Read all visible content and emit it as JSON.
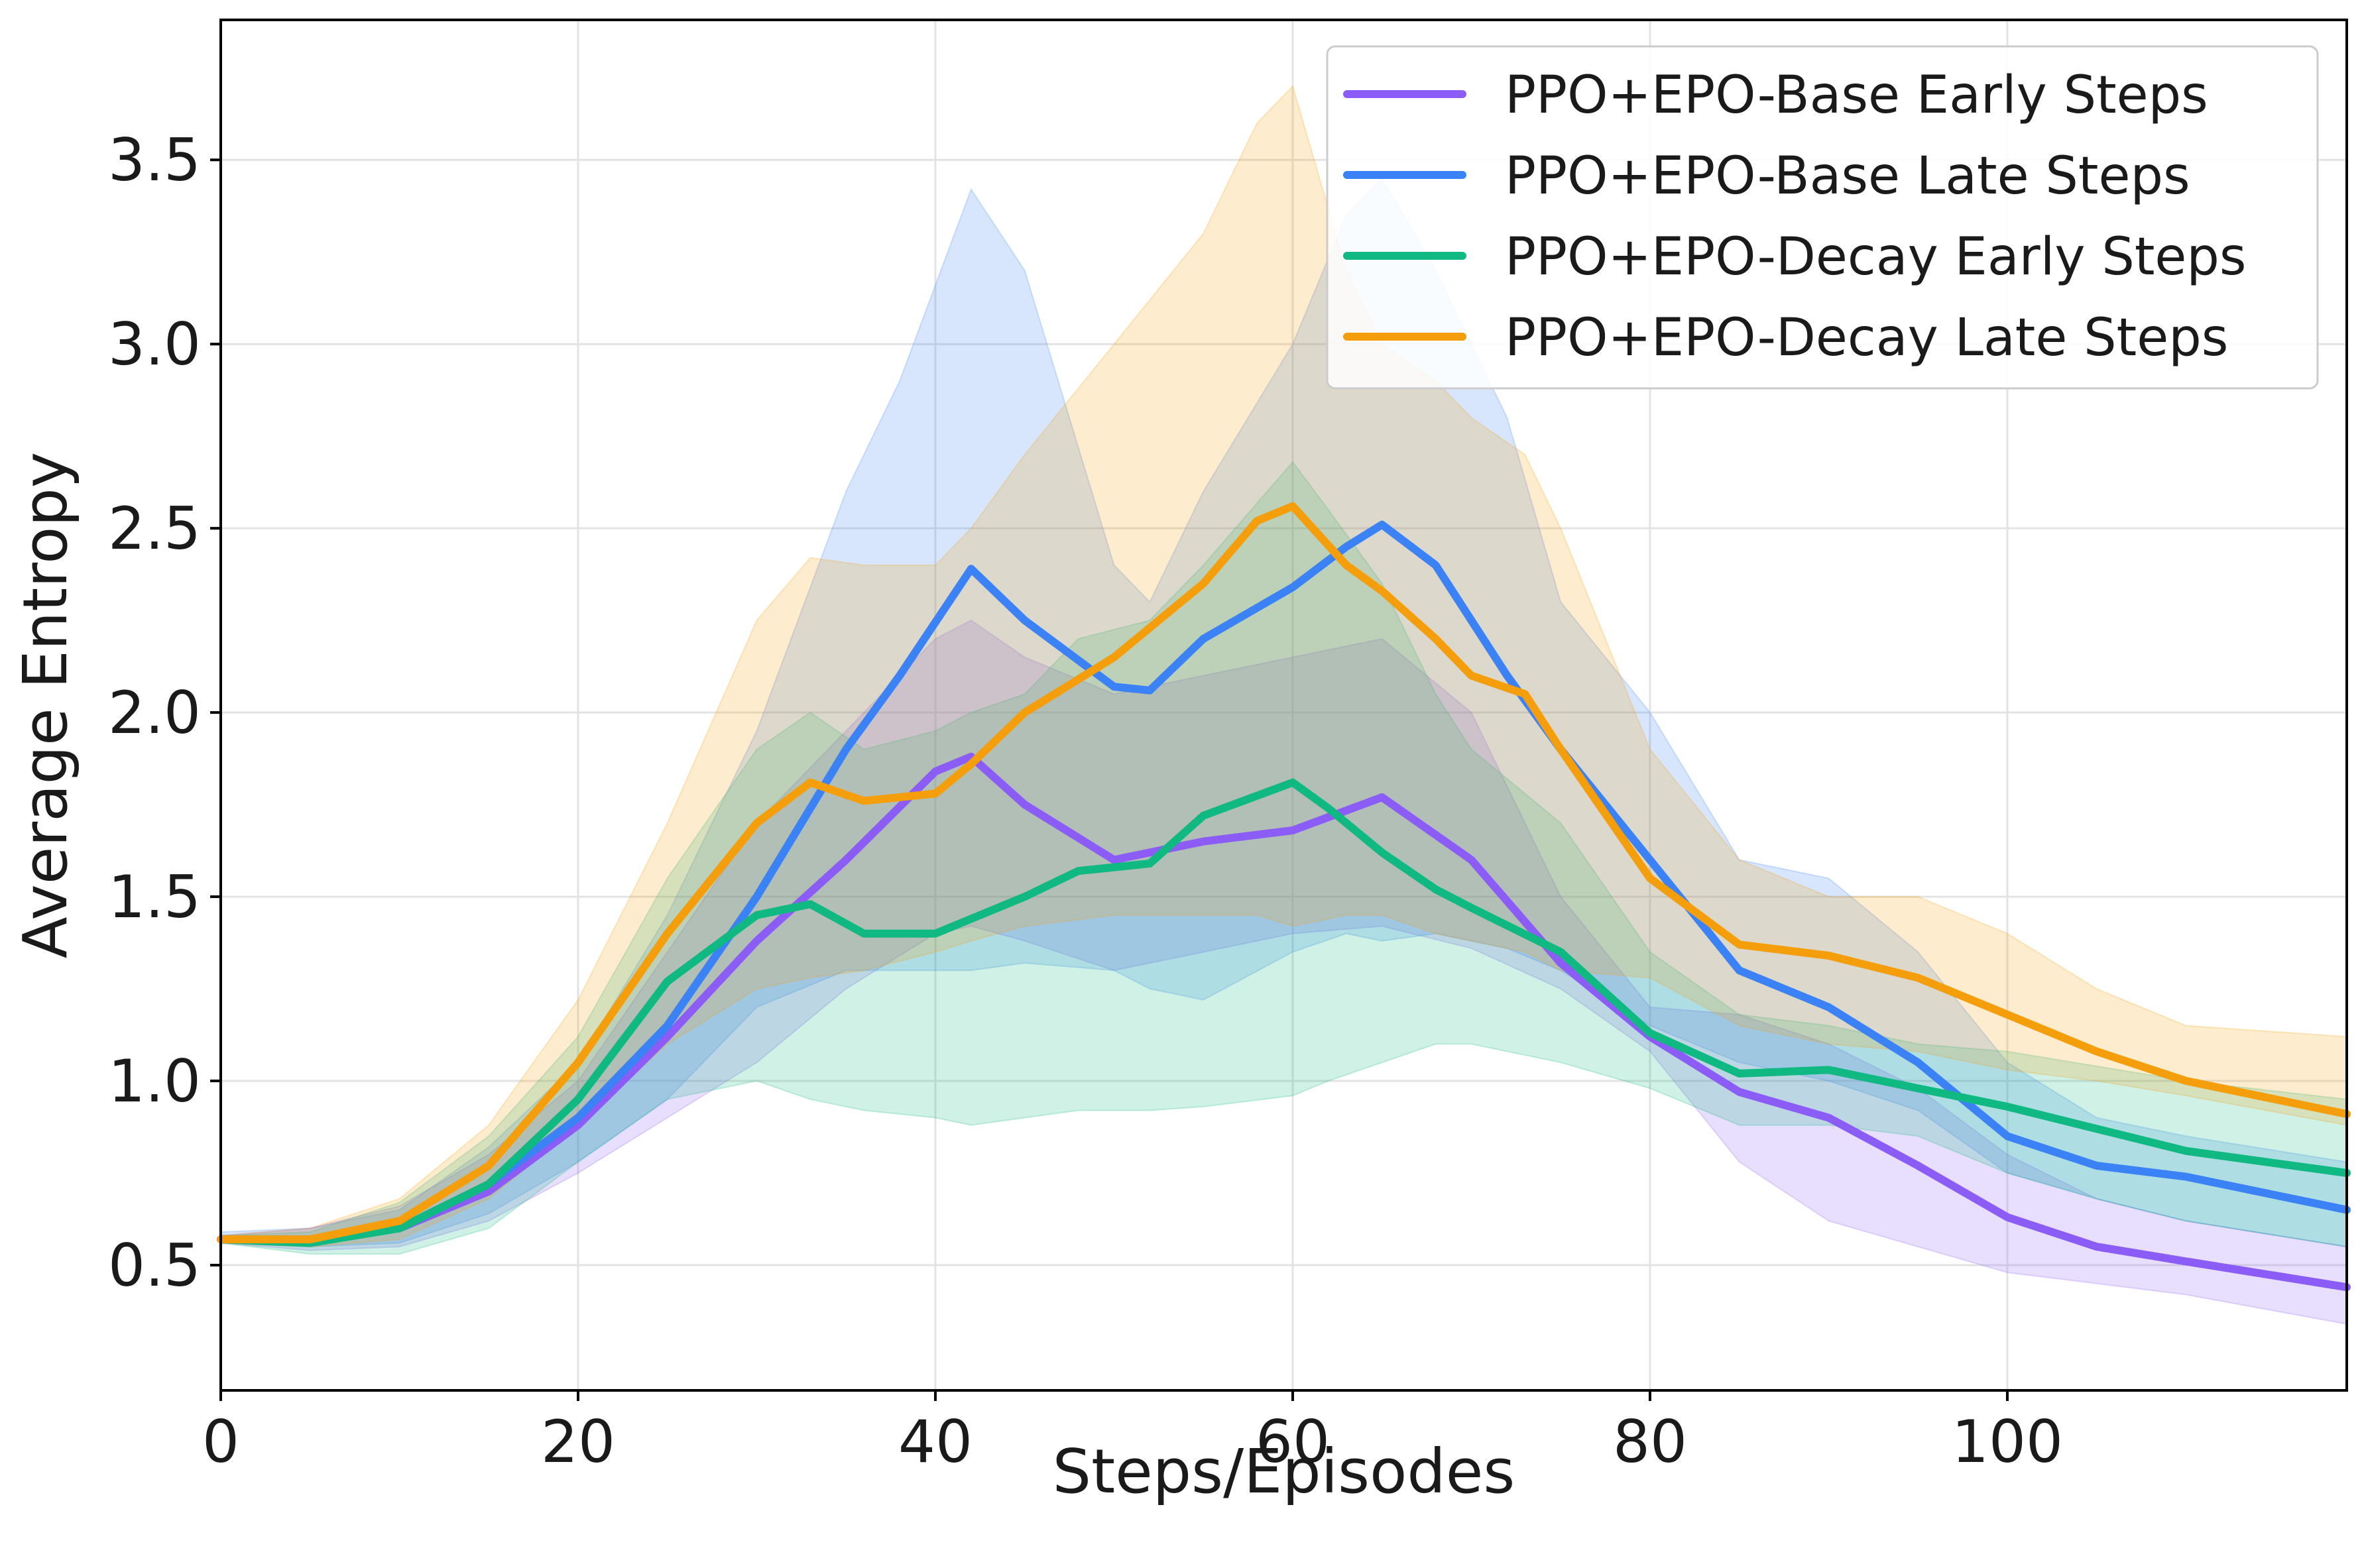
{
  "chart_data": {
    "type": "line",
    "title": "",
    "xlabel": "Steps/Episodes",
    "ylabel": "Average Entropy",
    "xlim": [
      0,
      119
    ],
    "ylim": [
      0.16,
      3.88
    ],
    "xticks": [
      0,
      20,
      40,
      60,
      80,
      100
    ],
    "yticks": [
      0.5,
      1.0,
      1.5,
      2.0,
      2.5,
      3.0,
      3.5
    ],
    "xtick_labels": [
      "0",
      "20",
      "40",
      "60",
      "80",
      "100"
    ],
    "ytick_labels": [
      "0.5",
      "1.0",
      "1.5",
      "2.0",
      "2.5",
      "3.0",
      "3.5"
    ],
    "grid": true,
    "legend_position": "top-right",
    "series": [
      {
        "name": "PPO+EPO-Base Early Steps",
        "color": "#8B5CF6",
        "x": [
          0,
          5,
          10,
          15,
          20,
          25,
          30,
          35,
          40,
          42,
          45,
          50,
          55,
          60,
          65,
          70,
          75,
          80,
          85,
          90,
          95,
          100,
          105,
          110,
          119
        ],
        "mean": [
          0.57,
          0.57,
          0.6,
          0.7,
          0.88,
          1.12,
          1.38,
          1.6,
          1.84,
          1.88,
          1.75,
          1.6,
          1.65,
          1.68,
          1.77,
          1.6,
          1.32,
          1.12,
          0.97,
          0.9,
          0.77,
          0.63,
          0.55,
          0.51,
          0.44
        ],
        "lower": [
          0.56,
          0.54,
          0.55,
          0.62,
          0.75,
          0.9,
          1.05,
          1.25,
          1.4,
          1.42,
          1.38,
          1.3,
          1.35,
          1.4,
          1.42,
          1.36,
          1.25,
          1.08,
          0.78,
          0.62,
          0.55,
          0.48,
          0.45,
          0.42,
          0.34
        ],
        "upper": [
          0.58,
          0.6,
          0.66,
          0.8,
          1.0,
          1.35,
          1.7,
          1.95,
          2.2,
          2.25,
          2.15,
          2.05,
          2.1,
          2.15,
          2.2,
          2.0,
          1.5,
          1.2,
          1.18,
          1.1,
          0.98,
          0.8,
          0.68,
          0.62,
          0.55
        ]
      },
      {
        "name": "PPO+EPO-Base Late Steps",
        "color": "#3B82F6",
        "x": [
          0,
          5,
          10,
          15,
          20,
          25,
          30,
          35,
          38,
          42,
          45,
          50,
          52,
          55,
          60,
          63,
          65,
          68,
          72,
          75,
          80,
          85,
          90,
          95,
          100,
          105,
          110,
          119
        ],
        "mean": [
          0.57,
          0.57,
          0.6,
          0.72,
          0.9,
          1.15,
          1.5,
          1.9,
          2.1,
          2.39,
          2.25,
          2.07,
          2.06,
          2.2,
          2.34,
          2.45,
          2.51,
          2.4,
          2.1,
          1.9,
          1.6,
          1.3,
          1.2,
          1.05,
          0.85,
          0.77,
          0.74,
          0.65
        ],
        "lower": [
          0.56,
          0.55,
          0.56,
          0.64,
          0.78,
          0.95,
          1.2,
          1.3,
          1.3,
          1.3,
          1.32,
          1.3,
          1.25,
          1.22,
          1.35,
          1.4,
          1.38,
          1.4,
          1.36,
          1.3,
          1.15,
          1.05,
          1.0,
          0.92,
          0.75,
          0.68,
          0.62,
          0.55
        ],
        "upper": [
          0.59,
          0.6,
          0.65,
          0.82,
          1.05,
          1.45,
          1.95,
          2.6,
          2.9,
          3.42,
          3.2,
          2.4,
          2.3,
          2.6,
          3.0,
          3.35,
          3.45,
          3.2,
          2.8,
          2.3,
          2.0,
          1.6,
          1.55,
          1.35,
          1.05,
          0.9,
          0.85,
          0.78
        ]
      },
      {
        "name": "PPO+EPO-Decay Early Steps",
        "color": "#10B981",
        "x": [
          0,
          5,
          10,
          15,
          20,
          25,
          30,
          33,
          36,
          40,
          42,
          45,
          48,
          52,
          55,
          60,
          62,
          65,
          68,
          70,
          75,
          80,
          85,
          90,
          95,
          100,
          105,
          110,
          119
        ],
        "mean": [
          0.57,
          0.56,
          0.6,
          0.72,
          0.95,
          1.27,
          1.45,
          1.48,
          1.4,
          1.4,
          1.44,
          1.5,
          1.57,
          1.59,
          1.72,
          1.81,
          1.74,
          1.62,
          1.52,
          1.47,
          1.35,
          1.13,
          1.02,
          1.03,
          0.98,
          0.93,
          0.87,
          0.81,
          0.75
        ],
        "lower": [
          0.56,
          0.53,
          0.53,
          0.6,
          0.78,
          0.95,
          1.0,
          0.95,
          0.92,
          0.9,
          0.88,
          0.9,
          0.92,
          0.92,
          0.93,
          0.96,
          1.0,
          1.05,
          1.1,
          1.1,
          1.05,
          0.98,
          0.88,
          0.88,
          0.85,
          0.75,
          0.68,
          0.62,
          0.55
        ],
        "upper": [
          0.58,
          0.59,
          0.67,
          0.85,
          1.12,
          1.55,
          1.9,
          2.0,
          1.9,
          1.95,
          2.0,
          2.05,
          2.2,
          2.25,
          2.4,
          2.68,
          2.55,
          2.35,
          2.05,
          1.9,
          1.7,
          1.35,
          1.18,
          1.15,
          1.1,
          1.08,
          1.04,
          1.0,
          0.95
        ]
      },
      {
        "name": "PPO+EPO-Decay Late Steps",
        "color": "#F59E0B",
        "x": [
          0,
          5,
          10,
          15,
          20,
          25,
          30,
          33,
          36,
          40,
          42,
          45,
          50,
          55,
          58,
          60,
          63,
          65,
          68,
          70,
          73,
          75,
          80,
          85,
          90,
          95,
          100,
          105,
          110,
          119
        ],
        "mean": [
          0.57,
          0.57,
          0.62,
          0.77,
          1.05,
          1.4,
          1.7,
          1.81,
          1.76,
          1.78,
          1.86,
          2.0,
          2.15,
          2.35,
          2.52,
          2.56,
          2.4,
          2.33,
          2.2,
          2.1,
          2.05,
          1.9,
          1.55,
          1.37,
          1.34,
          1.28,
          1.18,
          1.08,
          1.0,
          0.91
        ],
        "lower": [
          0.56,
          0.55,
          0.57,
          0.68,
          0.88,
          1.1,
          1.25,
          1.28,
          1.3,
          1.35,
          1.38,
          1.42,
          1.45,
          1.45,
          1.45,
          1.42,
          1.45,
          1.45,
          1.4,
          1.38,
          1.35,
          1.3,
          1.28,
          1.15,
          1.1,
          1.08,
          1.03,
          1.0,
          0.96,
          0.88
        ],
        "upper": [
          0.58,
          0.6,
          0.68,
          0.88,
          1.22,
          1.7,
          2.25,
          2.42,
          2.4,
          2.4,
          2.5,
          2.7,
          3.0,
          3.3,
          3.6,
          3.7,
          3.2,
          3.0,
          2.9,
          2.8,
          2.7,
          2.5,
          1.9,
          1.6,
          1.5,
          1.5,
          1.4,
          1.25,
          1.15,
          1.12
        ]
      }
    ]
  }
}
